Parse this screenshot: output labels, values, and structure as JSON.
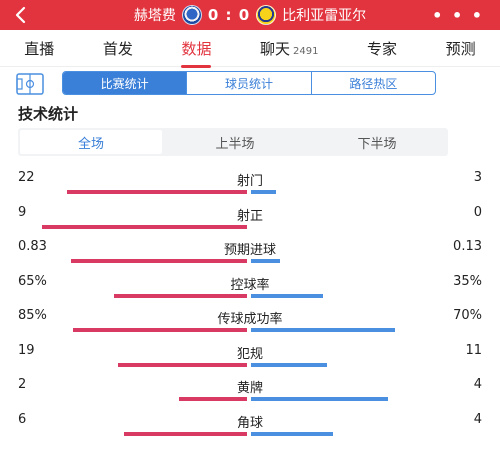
{
  "header": {
    "home_team": "赫塔费",
    "score": "0 : 0",
    "away_team": "比利亚雷亚尔",
    "more": "• • •"
  },
  "tabs": [
    {
      "label": "直播",
      "count": ""
    },
    {
      "label": "首发",
      "count": ""
    },
    {
      "label": "数据",
      "count": ""
    },
    {
      "label": "聊天",
      "count": "2491"
    },
    {
      "label": "专家",
      "count": ""
    },
    {
      "label": "预测",
      "count": ""
    }
  ],
  "subtabs": [
    "比赛统计",
    "球员统计",
    "路径热区"
  ],
  "section_title": "技术统计",
  "periods": [
    "全场",
    "上半场",
    "下半场"
  ],
  "stats": [
    {
      "label": "射门",
      "home": "22",
      "away": "3",
      "home_frac": 0.88,
      "away_frac": 0.12
    },
    {
      "label": "射正",
      "home": "9",
      "away": "0",
      "home_frac": 1.0,
      "away_frac": 0.0
    },
    {
      "label": "预期进球",
      "home": "0.83",
      "away": "0.13",
      "home_frac": 0.86,
      "away_frac": 0.14
    },
    {
      "label": "控球率",
      "home": "65%",
      "away": "35%",
      "home_frac": 0.65,
      "away_frac": 0.35
    },
    {
      "label": "传球成功率",
      "home": "85%",
      "away": "70%",
      "home_frac": 0.85,
      "away_frac": 0.7
    },
    {
      "label": "犯规",
      "home": "19",
      "away": "11",
      "home_frac": 0.63,
      "away_frac": 0.37
    },
    {
      "label": "黄牌",
      "home": "2",
      "away": "4",
      "home_frac": 0.33,
      "away_frac": 0.67
    },
    {
      "label": "角球",
      "home": "6",
      "away": "4",
      "home_frac": 0.6,
      "away_frac": 0.4
    }
  ],
  "colors": {
    "header_red": "#e2343f",
    "home_bar": "#d93a63",
    "away_bar": "#4a8fe0",
    "accent_blue": "#3a7fd8"
  }
}
